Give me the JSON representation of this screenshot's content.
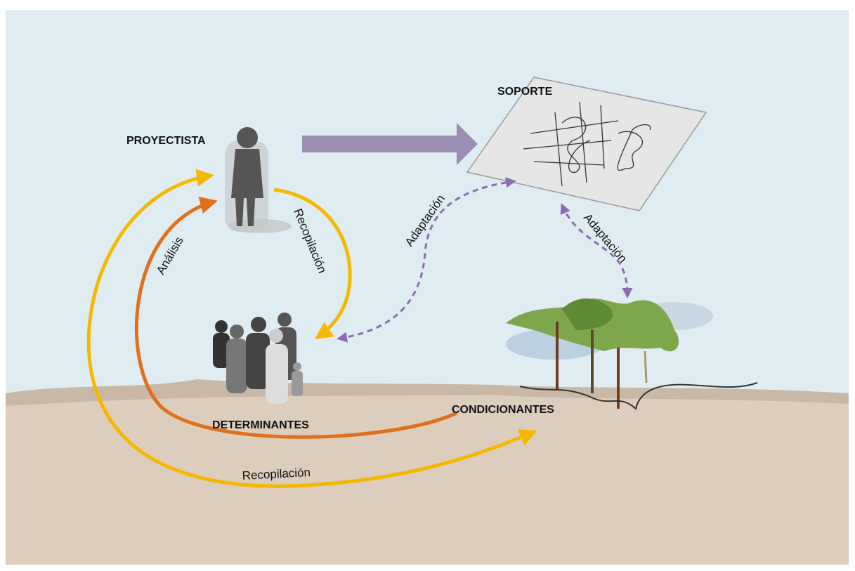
{
  "nodes": [
    {
      "label": "PROYECTISTA"
    },
    {
      "label": "SOPORTE"
    },
    {
      "label": "DETERMINANTES"
    },
    {
      "label": "CONDICIONANTES"
    }
  ],
  "edges": [
    {
      "label": "Recopilación"
    },
    {
      "label": "Análisis"
    },
    {
      "label": "Recopilación"
    },
    {
      "label": "Adaptación"
    },
    {
      "label": "Adaptación"
    }
  ]
}
